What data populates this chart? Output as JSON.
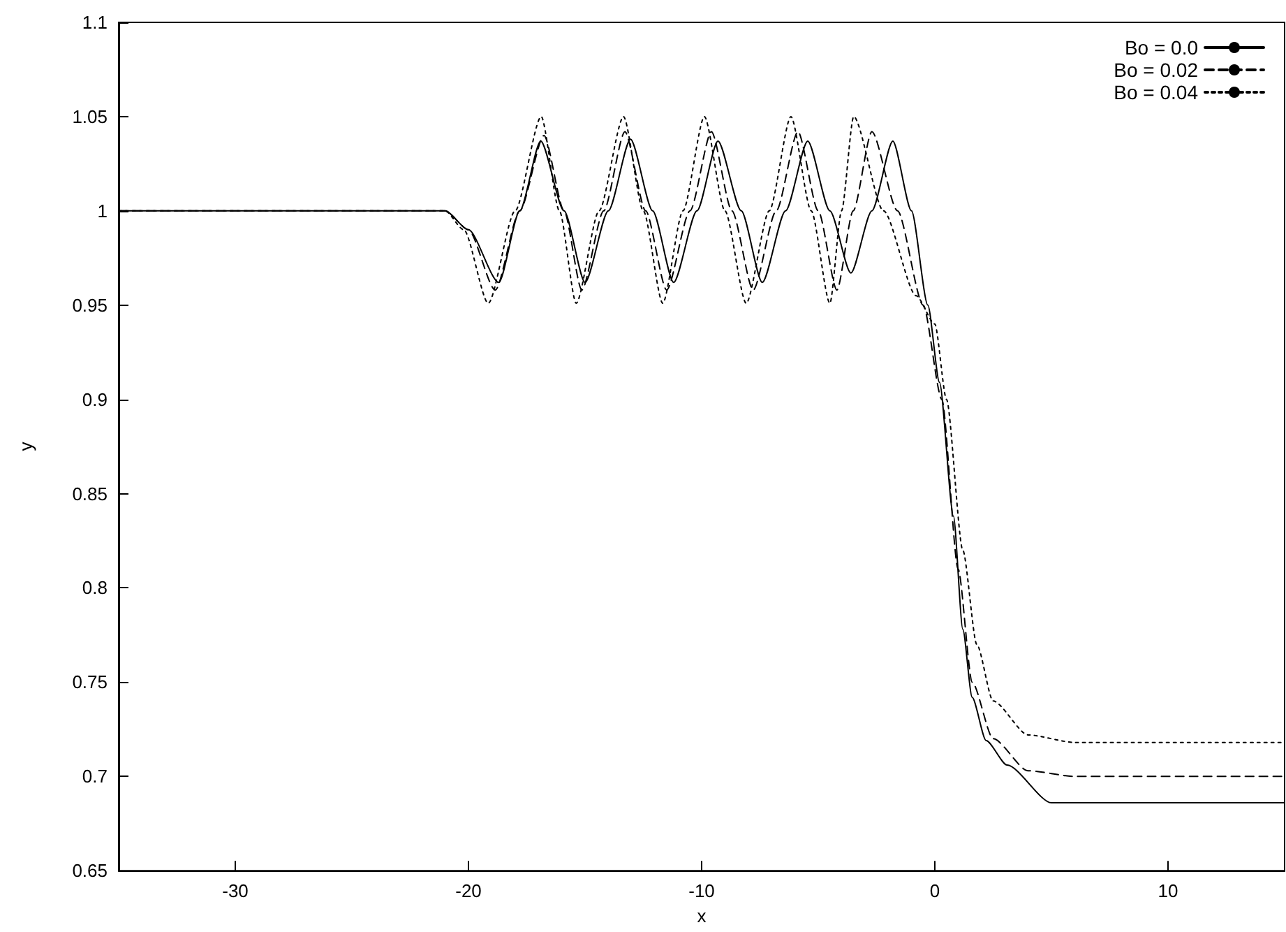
{
  "chart_data": {
    "type": "line",
    "xlabel": "x",
    "ylabel": "y",
    "xlim": [
      -35,
      15
    ],
    "xticks": [
      -30,
      -20,
      -10,
      0,
      10
    ],
    "ylim": [
      0.65,
      1.1
    ],
    "yticks": [
      0.65,
      0.7,
      0.75,
      0.8,
      0.85,
      0.9,
      0.95,
      1,
      1.05,
      1.1
    ],
    "grid": false,
    "legend": "top right",
    "marker": "none",
    "series": [
      {
        "name": "Bo = 0.0",
        "color": "#000000",
        "line_style": "solid",
        "x": [
          -35,
          -21,
          -20,
          -18.7,
          -17.8,
          -16.9,
          -15.9,
          -15,
          -14,
          -13.05,
          -12.1,
          -11.2,
          -10.2,
          -9.3,
          -8.3,
          -7.4,
          -6.4,
          -5.45,
          -4.5,
          -3.6,
          -2.7,
          -1.8,
          -1,
          -0.3,
          0.2,
          0.8,
          1.2,
          1.6,
          2.2,
          3.1,
          5,
          15
        ],
        "values": [
          1,
          1,
          0.99,
          0.962,
          1,
          1.037,
          1,
          0.962,
          1,
          1.038,
          1,
          0.962,
          1,
          1.037,
          1,
          0.962,
          1,
          1.037,
          1,
          0.967,
          1,
          1.037,
          1,
          0.95,
          0.909,
          0.838,
          0.778,
          0.742,
          0.719,
          0.706,
          0.686,
          0.686
        ]
      },
      {
        "name": "Bo = 0.02",
        "color": "#000000",
        "line_style": "dashed",
        "x": [
          -35,
          -21,
          -20,
          -18.85,
          -17.8,
          -16.76,
          -15.9,
          -15.14,
          -14.2,
          -13.29,
          -12.4,
          -11.5,
          -10.5,
          -9.58,
          -8.7,
          -7.79,
          -6.8,
          -5.87,
          -5,
          -4.2,
          -3.5,
          -2.7,
          -1.6,
          -0.5,
          0.3,
          1,
          1.6,
          2.5,
          4,
          6,
          15
        ],
        "values": [
          1,
          1,
          0.99,
          0.958,
          1,
          1.04,
          1,
          0.958,
          1,
          1.042,
          1,
          0.958,
          1,
          1.042,
          1,
          0.958,
          1,
          1.042,
          1,
          0.958,
          1,
          1.042,
          1,
          0.95,
          0.9,
          0.81,
          0.75,
          0.72,
          0.703,
          0.7,
          0.7
        ]
      },
      {
        "name": "Bo = 0.04",
        "color": "#000000",
        "line_style": "dotted",
        "x": [
          -35,
          -21,
          -20.2,
          -19.15,
          -18,
          -16.88,
          -16.1,
          -15.38,
          -14.4,
          -13.35,
          -12.5,
          -11.67,
          -10.8,
          -9.88,
          -9,
          -8.09,
          -7.1,
          -6.17,
          -5.3,
          -4.5,
          -4,
          -3.48,
          -2.2,
          -0.8,
          0,
          0.5,
          1.2,
          1.8,
          2.5,
          4,
          6,
          15
        ],
        "values": [
          1,
          1,
          0.99,
          0.951,
          1,
          1.05,
          1,
          0.951,
          1,
          1.05,
          1,
          0.951,
          1,
          1.05,
          1,
          0.951,
          1,
          1.05,
          1,
          0.951,
          1,
          1.05,
          1,
          0.955,
          0.94,
          0.9,
          0.82,
          0.77,
          0.74,
          0.722,
          0.718,
          0.718
        ]
      }
    ]
  }
}
